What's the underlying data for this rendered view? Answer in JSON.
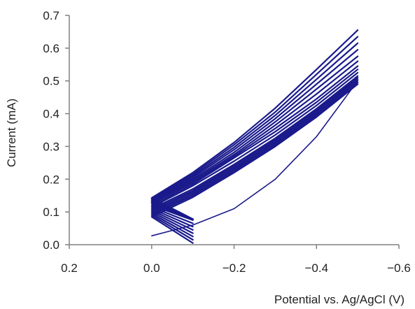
{
  "chart_data": {
    "type": "line",
    "title": "",
    "xlabel": "Potential vs. Ag/AgCl (V)",
    "ylabel": "Current (mA)",
    "x_reversed": true,
    "xlim": [
      0.2,
      -0.6
    ],
    "ylim": [
      0.0,
      0.7
    ],
    "x_ticks": [
      0.2,
      0.0,
      -0.2,
      -0.4,
      -0.6
    ],
    "x_tick_labels": [
      "0.2",
      "0.0",
      "−0.2",
      "−0.4",
      "−0.6"
    ],
    "y_ticks": [
      0.0,
      0.1,
      0.2,
      0.3,
      0.4,
      0.5,
      0.6,
      0.7
    ],
    "y_tick_labels": [
      "0.0",
      "0.1",
      "0.2",
      "0.3",
      "0.4",
      "0.5",
      "0.6",
      "0.7"
    ],
    "grid": false,
    "legend": "none",
    "line_color": "#1a1a8c",
    "series": [
      {
        "x": [
          0.0,
          -0.1,
          -0.2,
          -0.3,
          -0.4,
          -0.5
        ],
        "y": [
          0.027,
          0.06,
          0.11,
          0.2,
          0.33,
          0.5
        ]
      },
      {
        "x": [
          -0.1,
          0.0,
          -0.1,
          -0.2,
          -0.3,
          -0.4,
          -0.5
        ],
        "y": [
          0.005,
          0.085,
          0.145,
          0.22,
          0.3,
          0.39,
          0.49
        ]
      },
      {
        "x": [
          -0.1,
          0.0,
          -0.1,
          -0.2,
          -0.3,
          -0.4,
          -0.5
        ],
        "y": [
          0.015,
          0.09,
          0.15,
          0.225,
          0.305,
          0.395,
          0.495
        ]
      },
      {
        "x": [
          -0.1,
          0.0,
          -0.1,
          -0.2,
          -0.3,
          -0.4,
          -0.5
        ],
        "y": [
          0.025,
          0.095,
          0.155,
          0.23,
          0.31,
          0.4,
          0.5
        ]
      },
      {
        "x": [
          -0.1,
          0.0,
          -0.1,
          -0.2,
          -0.3,
          -0.4,
          -0.5
        ],
        "y": [
          0.035,
          0.1,
          0.16,
          0.235,
          0.315,
          0.405,
          0.505
        ]
      },
      {
        "x": [
          -0.1,
          0.0,
          -0.1,
          -0.2,
          -0.3,
          -0.4,
          -0.5
        ],
        "y": [
          0.045,
          0.105,
          0.165,
          0.24,
          0.32,
          0.41,
          0.51
        ]
      },
      {
        "x": [
          -0.1,
          0.0,
          -0.1,
          -0.2,
          -0.3,
          -0.4,
          -0.5
        ],
        "y": [
          0.055,
          0.11,
          0.17,
          0.245,
          0.325,
          0.415,
          0.515
        ]
      },
      {
        "x": [
          -0.1,
          0.0,
          -0.1,
          -0.2,
          -0.3,
          -0.4,
          -0.5
        ],
        "y": [
          0.065,
          0.115,
          0.18,
          0.255,
          0.335,
          0.425,
          0.525
        ]
      },
      {
        "x": [
          -0.1,
          0.0,
          -0.1,
          -0.2,
          -0.3,
          -0.4,
          -0.5
        ],
        "y": [
          0.075,
          0.12,
          0.185,
          0.265,
          0.345,
          0.435,
          0.535
        ]
      },
      {
        "x": [
          -0.1,
          0.0,
          -0.1,
          -0.2,
          -0.3,
          -0.4,
          -0.5
        ],
        "y": [
          0.078,
          0.125,
          0.19,
          0.27,
          0.355,
          0.445,
          0.545
        ]
      },
      {
        "x": [
          -0.1,
          0.0,
          -0.1,
          -0.2,
          -0.3,
          -0.4,
          -0.5
        ],
        "y": [
          0.078,
          0.128,
          0.195,
          0.275,
          0.365,
          0.46,
          0.56
        ]
      },
      {
        "x": [
          -0.1,
          0.0,
          -0.1,
          -0.2,
          -0.3,
          -0.4,
          -0.5
        ],
        "y": [
          0.078,
          0.131,
          0.2,
          0.282,
          0.375,
          0.475,
          0.575
        ]
      },
      {
        "x": [
          -0.1,
          0.0,
          -0.1,
          -0.2,
          -0.3,
          -0.4,
          -0.5
        ],
        "y": [
          0.078,
          0.134,
          0.205,
          0.29,
          0.385,
          0.49,
          0.595
        ]
      },
      {
        "x": [
          -0.1,
          0.0,
          -0.1,
          -0.2,
          -0.3,
          -0.4,
          -0.5
        ],
        "y": [
          0.078,
          0.137,
          0.21,
          0.297,
          0.395,
          0.505,
          0.615
        ]
      },
      {
        "x": [
          -0.1,
          0.0,
          -0.1,
          -0.2,
          -0.3,
          -0.4,
          -0.5
        ],
        "y": [
          0.078,
          0.14,
          0.215,
          0.305,
          0.405,
          0.52,
          0.635
        ]
      },
      {
        "x": [
          -0.1,
          0.0,
          -0.1,
          -0.2,
          -0.3,
          -0.4,
          -0.5
        ],
        "y": [
          0.078,
          0.143,
          0.22,
          0.312,
          0.417,
          0.535,
          0.655
        ]
      }
    ]
  }
}
